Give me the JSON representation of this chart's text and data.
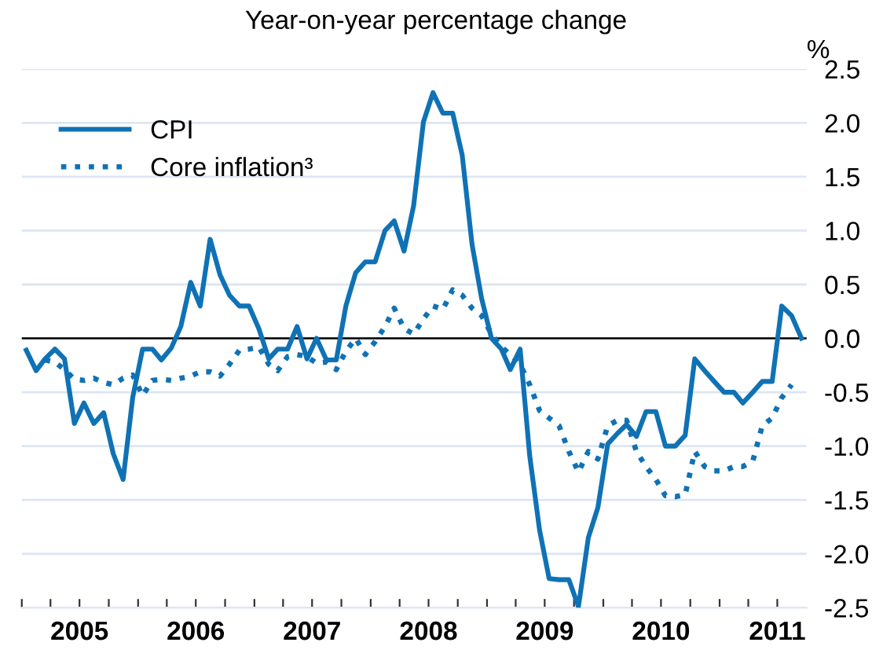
{
  "chart_data": {
    "type": "line",
    "title": "Year-on-year percentage change",
    "ylabel": "%",
    "x": [
      "2005-01-15",
      "2005-02-15",
      "2005-03-15",
      "2005-04-15",
      "2005-05-15",
      "2005-06-15",
      "2005-07-15",
      "2005-08-15",
      "2005-09-15",
      "2005-10-15",
      "2005-11-15",
      "2005-12-15",
      "2006-01-15",
      "2006-02-15",
      "2006-03-15",
      "2006-04-15",
      "2006-05-15",
      "2006-06-15",
      "2006-07-15",
      "2006-08-15",
      "2006-09-15",
      "2006-10-15",
      "2006-11-15",
      "2006-12-15",
      "2007-01-15",
      "2007-02-15",
      "2007-03-15",
      "2007-04-15",
      "2007-05-15",
      "2007-06-15",
      "2007-07-15",
      "2007-08-15",
      "2007-09-15",
      "2007-10-15",
      "2007-11-15",
      "2007-12-15",
      "2008-01-15",
      "2008-02-15",
      "2008-03-15",
      "2008-04-15",
      "2008-05-15",
      "2008-06-15",
      "2008-07-15",
      "2008-08-15",
      "2008-09-15",
      "2008-10-15",
      "2008-11-15",
      "2008-12-15",
      "2009-01-15",
      "2009-02-15",
      "2009-03-15",
      "2009-04-15",
      "2009-05-15",
      "2009-06-15",
      "2009-07-15",
      "2009-08-15",
      "2009-09-15",
      "2009-10-15",
      "2009-11-15",
      "2009-12-15",
      "2010-01-15",
      "2010-02-15",
      "2010-03-15",
      "2010-04-15",
      "2010-05-15",
      "2010-06-15",
      "2010-07-15",
      "2010-08-15",
      "2010-09-15",
      "2010-10-15",
      "2010-11-15",
      "2010-12-15",
      "2011-01-15",
      "2011-02-15",
      "2011-03-15",
      "2011-04-15",
      "2011-05-15",
      "2011-06-15",
      "2011-07-15",
      "2011-08-15",
      "2011-09-15"
    ],
    "series": [
      {
        "name": "CPI",
        "color": "#0f72b5",
        "line_style": "solid",
        "values": [
          -0.11,
          -0.3,
          -0.19,
          -0.1,
          -0.19,
          -0.79,
          -0.6,
          -0.79,
          -0.69,
          -1.07,
          -1.31,
          -0.55,
          -0.1,
          -0.1,
          -0.2,
          -0.09,
          0.11,
          0.52,
          0.3,
          0.92,
          0.59,
          0.4,
          0.3,
          0.3,
          0.09,
          -0.19,
          -0.1,
          -0.1,
          0.11,
          -0.19,
          0.0,
          -0.2,
          -0.2,
          0.3,
          0.61,
          0.71,
          0.71,
          1.0,
          1.09,
          0.81,
          1.23,
          2.01,
          2.28,
          2.09,
          2.09,
          1.7,
          0.87,
          0.37,
          0.0,
          -0.1,
          -0.29,
          -0.1,
          -1.09,
          -1.78,
          -2.23,
          -2.24,
          -2.24,
          -2.49,
          -1.85,
          -1.57,
          -0.98,
          -0.88,
          -0.8,
          -0.91,
          -0.68,
          -0.68,
          -1.0,
          -1.0,
          -0.9,
          -0.19,
          -0.3,
          -0.4,
          -0.5,
          -0.5,
          -0.6,
          -0.5,
          -0.4,
          -0.4,
          0.3,
          0.21,
          0.0
        ]
      },
      {
        "name": "Core inflation³",
        "color": "#0f72b5",
        "line_style": "dotted",
        "values": [
          null,
          null,
          -0.2,
          -0.22,
          -0.29,
          -0.38,
          -0.39,
          -0.37,
          -0.41,
          -0.43,
          -0.37,
          -0.34,
          -0.53,
          -0.39,
          -0.38,
          -0.39,
          -0.37,
          -0.35,
          -0.31,
          -0.31,
          -0.35,
          -0.24,
          -0.11,
          -0.1,
          -0.08,
          -0.24,
          -0.3,
          -0.17,
          -0.15,
          -0.17,
          -0.23,
          -0.22,
          -0.29,
          -0.12,
          0.0,
          -0.15,
          -0.03,
          0.11,
          0.28,
          0.09,
          0.04,
          0.18,
          0.3,
          0.27,
          0.45,
          0.4,
          0.28,
          0.21,
          0.04,
          -0.08,
          -0.15,
          -0.24,
          -0.43,
          -0.67,
          -0.74,
          -0.81,
          -1.05,
          -1.24,
          -1.05,
          -1.12,
          -0.81,
          -0.76,
          -0.76,
          -1.05,
          -1.19,
          -1.31,
          -1.46,
          -1.47,
          -1.45,
          -1.05,
          -1.19,
          -1.23,
          -1.23,
          -1.19,
          -1.19,
          -1.14,
          -0.81,
          -0.74,
          -0.55,
          -0.43,
          null
        ]
      }
    ],
    "xlim": [
      "2005-01-01",
      "2011-10-01"
    ],
    "xticks": [
      {
        "value": "2005-01-01",
        "label": null
      },
      {
        "value": "2005-04-01",
        "label": null
      },
      {
        "value": "2005-07-01",
        "label": "2005"
      },
      {
        "value": "2005-10-01",
        "label": null
      },
      {
        "value": "2006-01-01",
        "label": null
      },
      {
        "value": "2006-04-01",
        "label": null
      },
      {
        "value": "2006-07-01",
        "label": "2006"
      },
      {
        "value": "2006-10-01",
        "label": null
      },
      {
        "value": "2007-01-01",
        "label": null
      },
      {
        "value": "2007-04-01",
        "label": null
      },
      {
        "value": "2007-07-01",
        "label": "2007"
      },
      {
        "value": "2007-10-01",
        "label": null
      },
      {
        "value": "2008-01-01",
        "label": null
      },
      {
        "value": "2008-04-01",
        "label": null
      },
      {
        "value": "2008-07-01",
        "label": "2008"
      },
      {
        "value": "2008-10-01",
        "label": null
      },
      {
        "value": "2009-01-01",
        "label": null
      },
      {
        "value": "2009-04-01",
        "label": null
      },
      {
        "value": "2009-07-01",
        "label": "2009"
      },
      {
        "value": "2009-10-01",
        "label": null
      },
      {
        "value": "2010-01-01",
        "label": null
      },
      {
        "value": "2010-04-01",
        "label": null
      },
      {
        "value": "2010-07-01",
        "label": "2010"
      },
      {
        "value": "2010-10-01",
        "label": null
      },
      {
        "value": "2011-01-01",
        "label": null
      },
      {
        "value": "2011-04-01",
        "label": null
      },
      {
        "value": "2011-07-01",
        "label": "2011"
      }
    ],
    "ylim": [
      -2.5,
      2.5
    ],
    "yticks": [
      {
        "value": 2.5,
        "label": "2.5"
      },
      {
        "value": 2.0,
        "label": "2.0"
      },
      {
        "value": 1.5,
        "label": "1.5"
      },
      {
        "value": 1.0,
        "label": "1.0"
      },
      {
        "value": 0.5,
        "label": "0.5"
      },
      {
        "value": 0.0,
        "label": "0.0"
      },
      {
        "value": -0.5,
        "label": "-0.5"
      },
      {
        "value": -1.0,
        "label": "-1.0"
      },
      {
        "value": -1.5,
        "label": "-1.5"
      },
      {
        "value": -2.0,
        "label": "-2.0"
      },
      {
        "value": -2.5,
        "label": "-2.5"
      }
    ],
    "ref_lines": [
      {
        "axis": "y",
        "value": 0.0,
        "color": "#000000"
      }
    ],
    "grid": "y",
    "legend": "top left",
    "marker": "none"
  }
}
